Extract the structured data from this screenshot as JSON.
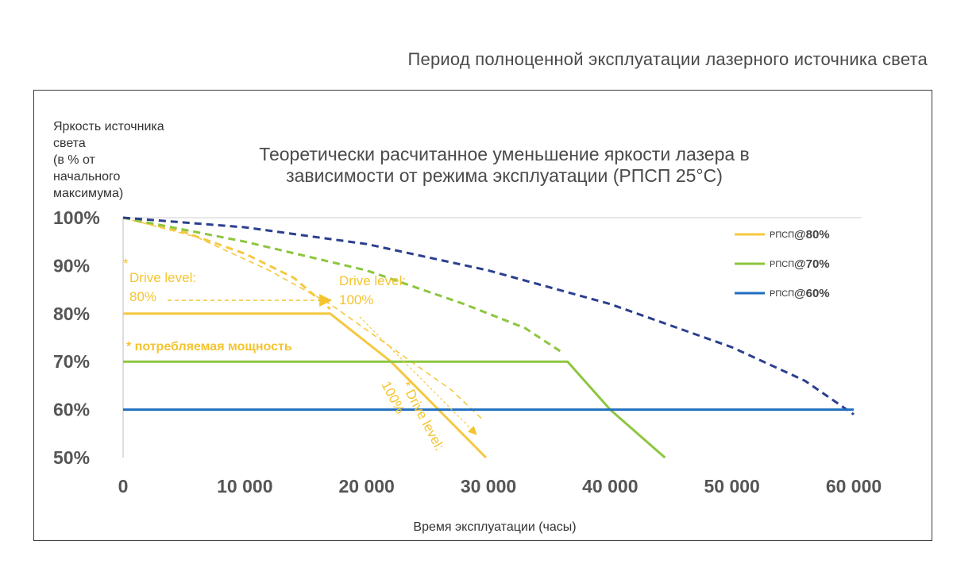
{
  "page": {
    "title": "Период полноценной эксплуатации лазерного источника света"
  },
  "colors": {
    "series_80": "#f5c842",
    "series_70": "#8dc63f",
    "series_60": "#1f6fc0",
    "dashed_60": "#2b3f8f",
    "tick_text": "#555555"
  },
  "chart_data": {
    "type": "line",
    "title_lines": [
      "Теоретически расчитанное уменьшение яркости лазера в",
      "зависимости от режима эксплуатации   (РПСП  25°C)"
    ],
    "ylabel_lines": [
      "Яркость источника",
      "света",
      "(в % от",
      "начального",
      "максимума)"
    ],
    "xlabel": "Время эксплуатации (часы)",
    "xlim": [
      0,
      60000
    ],
    "ylim": [
      50,
      100
    ],
    "x_ticks": [
      0,
      10000,
      20000,
      30000,
      40000,
      50000,
      60000
    ],
    "x_tick_labels": [
      "0",
      "10 000",
      "20 000",
      "30 000",
      "40 000",
      "50 000",
      "60 000"
    ],
    "y_ticks": [
      100,
      90,
      80,
      70,
      60,
      50
    ],
    "y_tick_labels": [
      "100%",
      "90%",
      "80%",
      "70%",
      "60%",
      "50%"
    ],
    "legend_position": "top-right",
    "legend": [
      {
        "prefix": "РПСП",
        "label": "@80%",
        "color": "#f5c842"
      },
      {
        "prefix": "РПСП",
        "label": "@70%",
        "color": "#8dc63f"
      },
      {
        "prefix": "РПСП",
        "label": "@60%",
        "color": "#1f6fc0"
      }
    ],
    "series": [
      {
        "legend_label": "@80%",
        "color": "#f5c842",
        "solid": [
          [
            0,
            80
          ],
          [
            17000,
            80
          ],
          [
            22000,
            70
          ],
          [
            29800,
            50
          ]
        ],
        "dashed": [
          [
            0,
            100
          ],
          [
            5000,
            97
          ],
          [
            10000,
            92.5
          ],
          [
            14000,
            87.5
          ],
          [
            17000,
            81
          ]
        ]
      },
      {
        "legend_label": "@70%",
        "color": "#8dc63f",
        "solid": [
          [
            0,
            70
          ],
          [
            36500,
            70
          ],
          [
            40000,
            60
          ],
          [
            44500,
            50
          ]
        ],
        "dashed": [
          [
            0,
            100
          ],
          [
            10000,
            95
          ],
          [
            20000,
            89
          ],
          [
            28000,
            82
          ],
          [
            33000,
            77
          ],
          [
            36000,
            72
          ]
        ]
      },
      {
        "legend_label": "@60%",
        "color": "#1f6fc0",
        "solid": [
          [
            0,
            60
          ],
          [
            60000,
            60
          ]
        ],
        "dashed": [
          [
            0,
            100
          ],
          [
            10000,
            98
          ],
          [
            20000,
            94.5
          ],
          [
            30000,
            89
          ],
          [
            40000,
            82
          ],
          [
            50000,
            73
          ],
          [
            56000,
            66
          ],
          [
            60000,
            59
          ]
        ]
      }
    ],
    "reference_100_dashed": [
      [
        0,
        100
      ],
      [
        6000,
        96
      ],
      [
        12000,
        89
      ],
      [
        17000,
        82
      ],
      [
        22000,
        73
      ],
      [
        27000,
        64
      ],
      [
        29500,
        58
      ]
    ],
    "annotations": {
      "drive_80": {
        "star": "*",
        "line1": "Drive level:",
        "line2": "80%"
      },
      "drive_100": {
        "line1": "Drive level:",
        "line2": "100%"
      },
      "power_note": "* потребляемая мощность",
      "drive_rotated": {
        "line1": "* Drive level:",
        "line2": "100%"
      }
    }
  }
}
